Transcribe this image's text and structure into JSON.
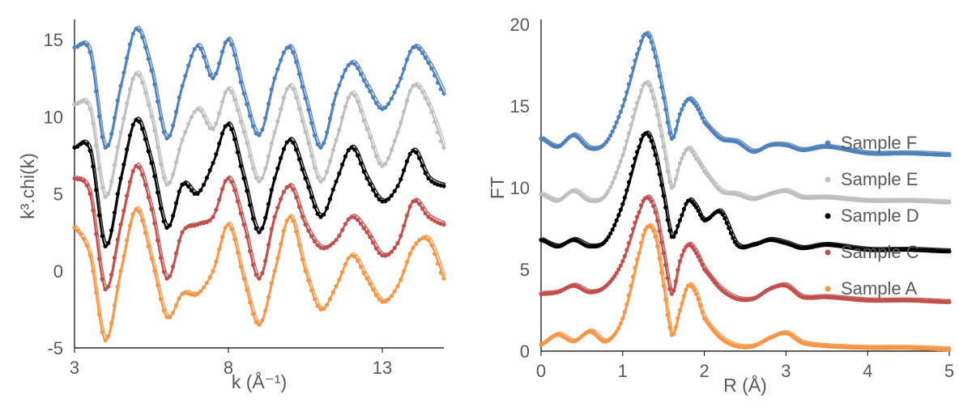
{
  "chart_data": [
    {
      "type": "line",
      "title": "",
      "xlabel": "k (Å⁻¹)",
      "ylabel": "k³.chi(k)",
      "xlim": [
        3,
        15
      ],
      "ylim": [
        -5,
        16
      ],
      "x_ticks": [
        "3",
        "8",
        "13"
      ],
      "y_ticks": [
        "-5",
        "0",
        "5",
        "10",
        "15"
      ],
      "grid": false,
      "legend": "none",
      "series_style": "experimental data as dots with fitted lines",
      "series": [
        {
          "color": "#4f81bd",
          "x": [
            3,
            3.5,
            4,
            4.5,
            5,
            5.5,
            6,
            6.5,
            7,
            7.5,
            8,
            8.5,
            9,
            9.5,
            10,
            10.5,
            11,
            11.5,
            12,
            12.5,
            13,
            13.5,
            14,
            14.5,
            15
          ],
          "y": [
            14.5,
            14.2,
            8.0,
            12.0,
            15.7,
            13.0,
            8.6,
            12.0,
            14.6,
            12.5,
            15.0,
            11.5,
            8.8,
            12.5,
            14.5,
            11.2,
            8.0,
            11.5,
            13.5,
            12.0,
            10.5,
            12.0,
            14.5,
            13.5,
            11.5
          ]
        },
        {
          "color": "#bfbfbf",
          "x": [
            3,
            3.5,
            4,
            4.5,
            5,
            5.5,
            6,
            6.5,
            7,
            7.5,
            8,
            8.5,
            9,
            9.5,
            10,
            10.5,
            11,
            11.5,
            12,
            12.5,
            13,
            13.5,
            14,
            14.5,
            15
          ],
          "y": [
            10.8,
            10.5,
            4.8,
            9.0,
            12.8,
            10.0,
            5.6,
            8.5,
            10.5,
            9.2,
            11.8,
            9.0,
            5.8,
            9.0,
            12.0,
            9.0,
            5.8,
            8.5,
            11.5,
            9.2,
            6.8,
            9.0,
            12.0,
            10.8,
            8.0
          ]
        },
        {
          "color": "#000000",
          "x": [
            3,
            3.5,
            4,
            4.5,
            5,
            5.5,
            6,
            6.5,
            7,
            7.5,
            8,
            8.5,
            9,
            9.5,
            10,
            10.5,
            11,
            11.5,
            12,
            12.5,
            13,
            13.5,
            14,
            14.5,
            15
          ],
          "y": [
            8.0,
            7.8,
            1.6,
            6.0,
            9.8,
            7.0,
            2.8,
            5.6,
            5.0,
            7.0,
            9.5,
            6.0,
            2.5,
            6.0,
            8.5,
            6.0,
            3.5,
            5.8,
            8.0,
            6.0,
            4.5,
            5.5,
            7.8,
            6.0,
            5.5
          ]
        },
        {
          "color": "#c0504d",
          "x": [
            3,
            3.5,
            4,
            4.5,
            5,
            5.5,
            6,
            6.5,
            7,
            7.5,
            8,
            8.5,
            9,
            9.5,
            10,
            10.5,
            11,
            11.5,
            12,
            12.5,
            13,
            13.5,
            14,
            14.5,
            15
          ],
          "y": [
            6.0,
            5.0,
            -1.2,
            3.0,
            6.8,
            4.0,
            -0.5,
            2.5,
            3.0,
            3.5,
            6.0,
            3.0,
            -0.5,
            3.5,
            5.5,
            3.0,
            1.5,
            2.0,
            3.5,
            2.5,
            1.0,
            1.8,
            4.5,
            3.5,
            3.0
          ]
        },
        {
          "color": "#f79646",
          "x": [
            3,
            3.5,
            4,
            4.5,
            5,
            5.5,
            6,
            6.5,
            7,
            7.5,
            8,
            8.5,
            9,
            9.5,
            10,
            10.5,
            11,
            11.5,
            12,
            12.5,
            13,
            13.5,
            14,
            14.5,
            15
          ],
          "y": [
            2.8,
            1.0,
            -4.5,
            0.0,
            4.0,
            0.8,
            -3.0,
            -1.5,
            -1.5,
            0.0,
            3.0,
            -0.5,
            -3.5,
            0.0,
            3.5,
            0.0,
            -2.5,
            -1.0,
            1.0,
            -0.5,
            -2.0,
            -1.0,
            1.5,
            2.0,
            -0.5
          ]
        }
      ]
    },
    {
      "type": "line",
      "title": "",
      "xlabel": "R (Å)",
      "ylabel": "FT",
      "xlim": [
        0,
        5
      ],
      "ylim": [
        0,
        20
      ],
      "x_ticks": [
        "0",
        "1",
        "2",
        "3",
        "4",
        "5"
      ],
      "y_ticks": [
        "0",
        "5",
        "10",
        "15",
        "20"
      ],
      "grid": false,
      "legend": "right",
      "series_style": "experimental data as dots with fitted lines",
      "series": [
        {
          "name": "Sample F",
          "color": "#4f81bd",
          "x": [
            0,
            0.2,
            0.4,
            0.6,
            0.8,
            1.0,
            1.2,
            1.3,
            1.4,
            1.5,
            1.6,
            1.7,
            1.8,
            1.9,
            2.0,
            2.2,
            2.4,
            2.6,
            2.8,
            3.0,
            3.2,
            3.5,
            4.0,
            4.5,
            5.0
          ],
          "y": [
            13.0,
            12.5,
            13.2,
            12.4,
            12.8,
            15.0,
            18.5,
            19.4,
            18.0,
            15.5,
            13.0,
            14.5,
            15.4,
            15.0,
            14.0,
            13.0,
            12.8,
            12.2,
            12.6,
            12.6,
            12.3,
            12.5,
            12.1,
            12.1,
            12.0
          ]
        },
        {
          "name": "Sample E",
          "color": "#bfbfbf",
          "x": [
            0,
            0.2,
            0.4,
            0.6,
            0.8,
            1.0,
            1.2,
            1.3,
            1.4,
            1.5,
            1.6,
            1.7,
            1.8,
            1.9,
            2.0,
            2.2,
            2.4,
            2.6,
            2.8,
            3.0,
            3.2,
            3.5,
            4.0,
            4.5,
            5.0
          ],
          "y": [
            9.6,
            9.2,
            9.8,
            9.2,
            9.6,
            12.0,
            15.5,
            16.4,
            15.0,
            12.5,
            10.0,
            11.5,
            12.4,
            11.8,
            11.0,
            9.8,
            9.6,
            9.3,
            9.6,
            9.8,
            9.4,
            9.4,
            9.2,
            9.2,
            9.1
          ]
        },
        {
          "name": "Sample D",
          "color": "#000000",
          "x": [
            0,
            0.2,
            0.4,
            0.6,
            0.8,
            1.0,
            1.2,
            1.3,
            1.4,
            1.5,
            1.6,
            1.7,
            1.8,
            1.9,
            2.0,
            2.2,
            2.4,
            2.6,
            2.8,
            3.0,
            3.2,
            3.5,
            4.0,
            4.5,
            5.0
          ],
          "y": [
            6.8,
            6.4,
            6.8,
            6.4,
            6.8,
            9.0,
            12.5,
            13.3,
            12.0,
            9.5,
            7.0,
            8.0,
            9.2,
            8.8,
            8.0,
            8.5,
            6.5,
            6.5,
            6.8,
            6.6,
            6.3,
            6.5,
            6.2,
            6.2,
            6.1
          ]
        },
        {
          "name": "Sample C",
          "color": "#c0504d",
          "x": [
            0,
            0.2,
            0.4,
            0.6,
            0.8,
            1.0,
            1.2,
            1.3,
            1.4,
            1.5,
            1.6,
            1.7,
            1.8,
            1.9,
            2.0,
            2.2,
            2.4,
            2.6,
            2.8,
            3.0,
            3.2,
            3.5,
            4.0,
            4.5,
            5.0
          ],
          "y": [
            3.5,
            3.6,
            4.0,
            3.6,
            4.0,
            5.5,
            8.5,
            9.4,
            8.5,
            6.0,
            3.5,
            5.5,
            6.5,
            6.0,
            5.0,
            3.8,
            3.2,
            3.2,
            3.8,
            4.0,
            3.3,
            3.3,
            3.1,
            3.1,
            3.0
          ]
        },
        {
          "name": "Sample A",
          "color": "#f79646",
          "x": [
            0,
            0.2,
            0.4,
            0.6,
            0.8,
            1.0,
            1.2,
            1.3,
            1.4,
            1.5,
            1.6,
            1.7,
            1.8,
            1.9,
            2.0,
            2.2,
            2.4,
            2.6,
            2.8,
            3.0,
            3.2,
            3.5,
            4.0,
            4.5,
            5.0
          ],
          "y": [
            0.4,
            1.0,
            0.6,
            1.2,
            0.6,
            2.0,
            6.0,
            7.6,
            7.0,
            4.0,
            1.0,
            2.5,
            4.0,
            3.5,
            2.0,
            0.8,
            0.3,
            0.3,
            0.8,
            1.1,
            0.5,
            0.3,
            0.2,
            0.2,
            0.1
          ]
        }
      ]
    }
  ]
}
